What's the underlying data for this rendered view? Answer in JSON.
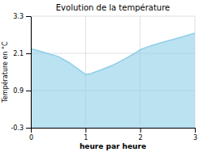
{
  "chart_data": {
    "type": "area",
    "title": "Evolution de la température",
    "x_label": "heure par heure",
    "y_label": "Température en °C",
    "x": [
      0,
      0.15,
      0.3,
      0.5,
      0.7,
      0.9,
      1.0,
      1.1,
      1.3,
      1.5,
      1.7,
      1.9,
      2.0,
      2.2,
      2.4,
      2.6,
      2.8,
      3.0
    ],
    "values": [
      2.25,
      2.18,
      2.1,
      2.0,
      1.8,
      1.55,
      1.42,
      1.45,
      1.58,
      1.72,
      1.9,
      2.1,
      2.22,
      2.35,
      2.45,
      2.55,
      2.65,
      2.75
    ],
    "color": "#8ecfe8",
    "xlim": [
      0,
      3
    ],
    "ylim": [
      -0.3,
      3.3
    ],
    "xticks": [
      0,
      1,
      2,
      3
    ],
    "yticks": [
      -0.3,
      0.9,
      2.1,
      3.3
    ],
    "grid": true
  }
}
